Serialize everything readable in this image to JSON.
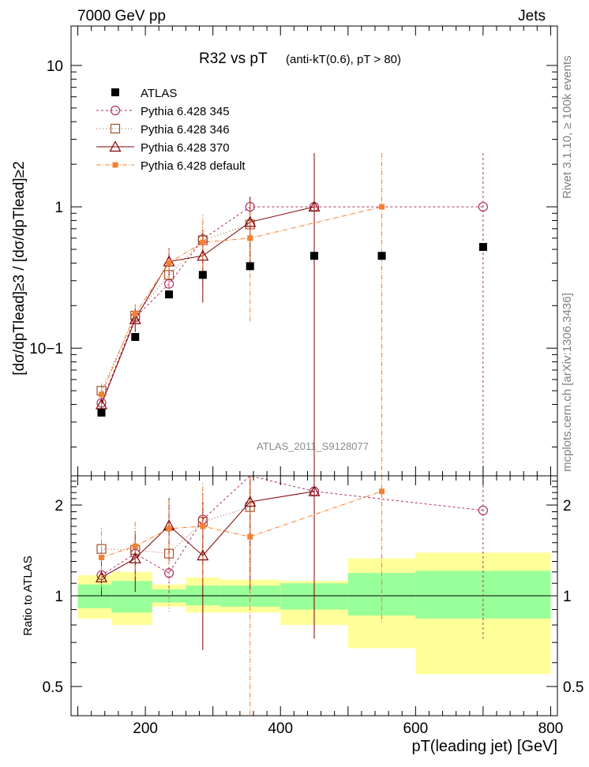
{
  "header": {
    "left": "7000 GeV pp",
    "right": "Jets",
    "analysis": "ATLAS_2011_S9128077",
    "side_top": "Rivet 3.1.10, ≥ 100k events",
    "side_bottom": "mcplots.cern.ch [arXiv:1306.3436]"
  },
  "chart_data": {
    "type": "scatter",
    "title": "R32 vs pT",
    "subtitle": "(anti-kT(0.6), pT > 80)",
    "xlabel": "pT(leading jet) [GeV]",
    "ylabel": "[dσ/dpTlead]≥3 / [dσ/dpTlead]≥2",
    "xlim": [
      90,
      810
    ],
    "ylim": [
      0.0125,
      19
    ],
    "yscale": "log",
    "xticks": [
      "200",
      "400",
      "600",
      "800"
    ],
    "yticks": [
      "10",
      "1",
      "10−1"
    ],
    "legend_position": "top-left",
    "data": {
      "name": "ATLAS",
      "color": "#000000",
      "x": [
        135,
        185,
        235,
        285,
        355,
        450,
        550,
        700
      ],
      "y": [
        0.035,
        0.12,
        0.24,
        0.33,
        0.38,
        0.45,
        0.45,
        0.52
      ]
    },
    "series": [
      {
        "name": "Pythia 6.428 345",
        "color": "#b03060",
        "marker": "open-circle",
        "dash": "3,3",
        "x": [
          135,
          185,
          235,
          285,
          355,
          450,
          700
        ],
        "y": [
          0.041,
          0.165,
          0.285,
          0.59,
          1.0,
          1.0,
          1.0
        ],
        "yerr": [
          0.004,
          0.02,
          0.04,
          0.1,
          0.0,
          1.4,
          1.4
        ],
        "ratio": [
          1.17,
          1.38,
          1.19,
          1.79,
          2.63,
          2.22,
          1.92
        ],
        "ratio_err": [
          0.12,
          0.15,
          0.2,
          0.4,
          0.0,
          1.2,
          1.2
        ]
      },
      {
        "name": "Pythia 6.428 346",
        "color": "#a0522d",
        "marker": "open-square",
        "dash": "1,3",
        "x": [
          135,
          185,
          235,
          285,
          355
        ],
        "y": [
          0.05,
          0.17,
          0.33,
          0.58,
          0.75
        ],
        "yerr": [
          0.006,
          0.03,
          0.08,
          0.3,
          0.4
        ],
        "ratio": [
          1.43,
          1.42,
          1.38,
          1.76,
          1.97
        ],
        "ratio_err": [
          0.25,
          0.3,
          0.5,
          0.6,
          1.0
        ]
      },
      {
        "name": "Pythia 6.428 370",
        "color": "#800000",
        "marker": "open-triangle",
        "dash": "",
        "x": [
          135,
          185,
          235,
          285,
          355,
          450
        ],
        "y": [
          0.04,
          0.16,
          0.41,
          0.45,
          0.78,
          1.0
        ],
        "yerr": [
          0.005,
          0.03,
          0.1,
          0.24,
          0.4,
          1.4
        ],
        "ratio": [
          1.15,
          1.33,
          1.71,
          1.36,
          2.05,
          2.22
        ],
        "ratio_err": [
          0.15,
          0.3,
          0.4,
          0.7,
          1.0,
          1.5
        ]
      },
      {
        "name": "Pythia 6.428 default",
        "color": "#f48030",
        "marker": "filled-square",
        "dash": "6,2,1,2",
        "x": [
          135,
          185,
          235,
          285,
          355,
          550
        ],
        "y": [
          0.047,
          0.175,
          0.4,
          0.56,
          0.6,
          1.0
        ],
        "yerr": [
          0.008,
          0.03,
          0.1,
          0.25,
          0.45,
          1.4
        ],
        "ratio": [
          1.34,
          1.46,
          1.67,
          1.7,
          1.57,
          2.22
        ],
        "ratio_err": [
          0.3,
          0.3,
          0.4,
          0.6,
          1.2,
          1.4
        ]
      }
    ],
    "ratio_panel": {
      "ylabel": "Ratio to ATLAS",
      "ylim": [
        0.4,
        2.5
      ],
      "yticks": [
        "2",
        "1",
        "0.5"
      ],
      "bands": [
        {
          "x0": 100,
          "x1": 150,
          "green": [
            0.91,
            1.09
          ],
          "yellow": [
            0.84,
            1.17
          ]
        },
        {
          "x0": 150,
          "x1": 210,
          "green": [
            0.88,
            1.12
          ],
          "yellow": [
            0.8,
            1.2
          ]
        },
        {
          "x0": 210,
          "x1": 260,
          "green": [
            0.95,
            1.05
          ],
          "yellow": [
            0.92,
            1.09
          ]
        },
        {
          "x0": 260,
          "x1": 310,
          "green": [
            0.93,
            1.08
          ],
          "yellow": [
            0.88,
            1.15
          ]
        },
        {
          "x0": 310,
          "x1": 400,
          "green": [
            0.92,
            1.08
          ],
          "yellow": [
            0.88,
            1.13
          ]
        },
        {
          "x0": 400,
          "x1": 500,
          "green": [
            0.9,
            1.1
          ],
          "yellow": [
            0.8,
            1.12
          ]
        },
        {
          "x0": 500,
          "x1": 600,
          "green": [
            0.86,
            1.19
          ],
          "yellow": [
            0.67,
            1.33
          ]
        },
        {
          "x0": 600,
          "x1": 800,
          "green": [
            0.84,
            1.21
          ],
          "yellow": [
            0.55,
            1.39
          ]
        }
      ]
    }
  }
}
